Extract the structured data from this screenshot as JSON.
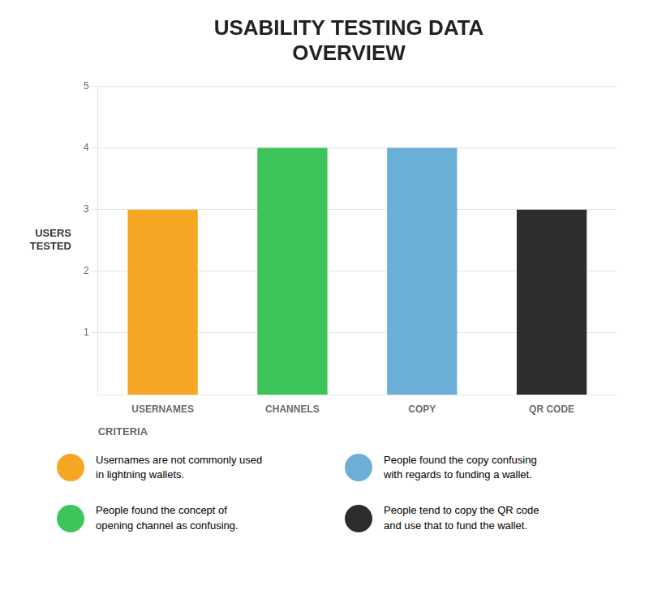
{
  "chart_data": {
    "type": "bar",
    "title": "USABILITY TESTING DATA\nOVERVIEW",
    "categories": [
      "USERNAMES",
      "CHANNELS",
      "COPY",
      "QR CODE"
    ],
    "values": [
      3,
      4,
      4,
      3
    ],
    "colors": [
      "#F5A623",
      "#3DC45A",
      "#6BAED6",
      "#2d2d2d"
    ],
    "xlabel": "CRITERIA",
    "ylabel": "USERS\nTESTED",
    "ylim": [
      0,
      5
    ],
    "yticks": [
      1,
      2,
      3,
      4,
      5
    ],
    "grid": true,
    "annotations": [
      {
        "text": "Usernames are not commonly used\nin lightning wallets.",
        "color": "#F5A623"
      },
      {
        "text": "People found the copy confusing\nwith regards to funding a wallet.",
        "color": "#6BAED6"
      },
      {
        "text": "People found the concept of\nopening channel as confusing.",
        "color": "#3DC45A"
      },
      {
        "text": "People tend to copy the QR code\nand use that to fund the wallet.",
        "color": "#2d2d2d"
      }
    ]
  }
}
